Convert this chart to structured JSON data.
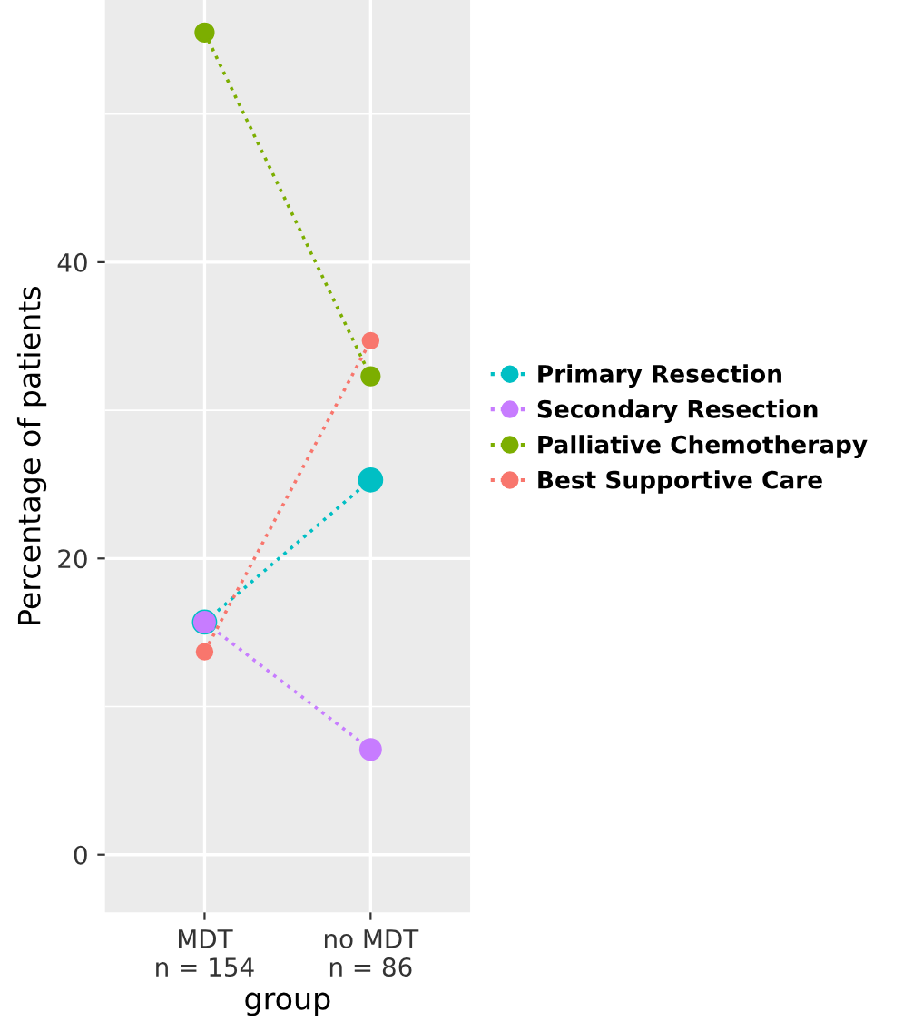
{
  "chart_data": {
    "type": "line",
    "xlabel": "group",
    "ylabel": "Percentage of patients",
    "categories": [
      "MDT\nn = 154",
      "no MDT\nn = 86"
    ],
    "series": [
      {
        "name": "Primary Resection",
        "color": "#00bfc4",
        "values": [
          15.7,
          25.3
        ]
      },
      {
        "name": "Secondary Resection",
        "color": "#c77cff",
        "values": [
          15.7,
          7.1
        ]
      },
      {
        "name": "Palliative Chemotherapy",
        "color": "#7cae00",
        "values": [
          55.5,
          32.3
        ]
      },
      {
        "name": "Best Supportive Care",
        "color": "#f8766d",
        "values": [
          13.7,
          34.7
        ]
      }
    ],
    "ylim": [
      -3.9,
      57.7
    ],
    "yticks": [
      0,
      20,
      40
    ],
    "grid": true,
    "legend": "right",
    "marker": "circle",
    "line_style": "dotted"
  }
}
